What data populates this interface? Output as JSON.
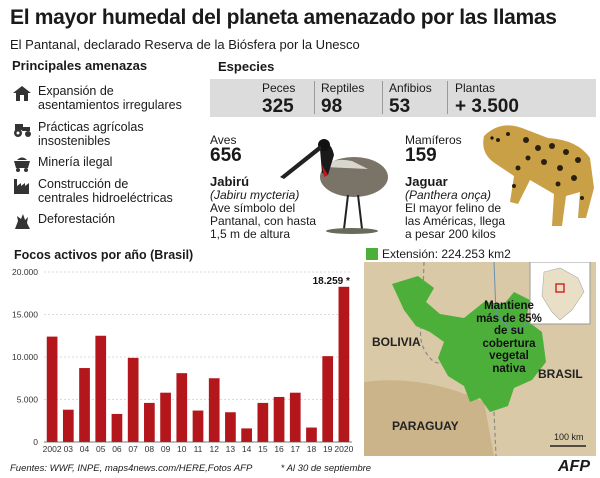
{
  "title": "El mayor humedal del planeta amenazado por las llamas",
  "subtitle": "El Pantanal, declarado Reserva de la Biósfera por la Unesco",
  "threats": {
    "heading": "Principales amenazas",
    "items": [
      {
        "icon": "house-icon",
        "label1": "Expansión de",
        "label2": "asentamientos irregulares"
      },
      {
        "icon": "tractor-icon",
        "label1": "Prácticas agrícolas",
        "label2": "insostenibles"
      },
      {
        "icon": "mine-cart-icon",
        "label1": "Minería ilegal",
        "label2": ""
      },
      {
        "icon": "factory-icon",
        "label1": "Construcción de",
        "label2": "centrales hidroeléctricas"
      },
      {
        "icon": "stump-icon",
        "label1": "Deforestación",
        "label2": ""
      }
    ]
  },
  "species": {
    "heading": "Especies",
    "counts": [
      {
        "label": "Peces",
        "value": "325"
      },
      {
        "label": "Reptiles",
        "value": "98"
      },
      {
        "label": "Anfibios",
        "value": "53"
      },
      {
        "label": "Plantas",
        "value": "+ 3.500"
      }
    ],
    "birds": {
      "label": "Aves",
      "value": "656",
      "name": "Jabirú",
      "sci": "(Jabiru mycteria)",
      "d1": "Ave símbolo del",
      "d2": "Pantanal, con hasta",
      "d3": "1,5 m de altura"
    },
    "mammals": {
      "label": "Mamíferos",
      "value": "159",
      "name": "Jaguar",
      "sci": "(Panthera onça)",
      "d1": "El mayor felino de",
      "d2": "las Américas, llega",
      "d3": "a pesar 200 kilos"
    }
  },
  "chart_data": {
    "type": "bar",
    "title": "Focos activos por año (Brasil)",
    "categories": [
      "2002",
      "03",
      "04",
      "05",
      "06",
      "07",
      "08",
      "09",
      "10",
      "11",
      "12",
      "13",
      "14",
      "15",
      "16",
      "17",
      "18",
      "19",
      "2020"
    ],
    "values": [
      12400,
      3800,
      8700,
      12500,
      3300,
      9900,
      4600,
      5800,
      8100,
      3700,
      7500,
      3500,
      1600,
      4600,
      5300,
      5800,
      1700,
      10100,
      18259
    ],
    "yticks": [
      "0",
      "5.000",
      "10.000",
      "15.000",
      "20.000"
    ],
    "ylim": [
      0,
      20000
    ],
    "annotation": "18.259 *",
    "bar_color": "#b3161b"
  },
  "map": {
    "legend": "Extensión: 224.253 km2",
    "callout": [
      "Mantiene",
      "más de 85%",
      "de su",
      "cobertura",
      "vegetal",
      "nativa"
    ],
    "labels": {
      "bolivia": "BOLIVIA",
      "brasil": "BRASIL",
      "paraguay": "PARAGUAY"
    },
    "scale": "100 km",
    "green": "#4caf3a"
  },
  "footer": {
    "sources": "Fuentes: WWF, INPE, maps4news.com/HERE,Fotos AFP",
    "note": "* Al 30 de septiembre",
    "logo": "AFP"
  }
}
